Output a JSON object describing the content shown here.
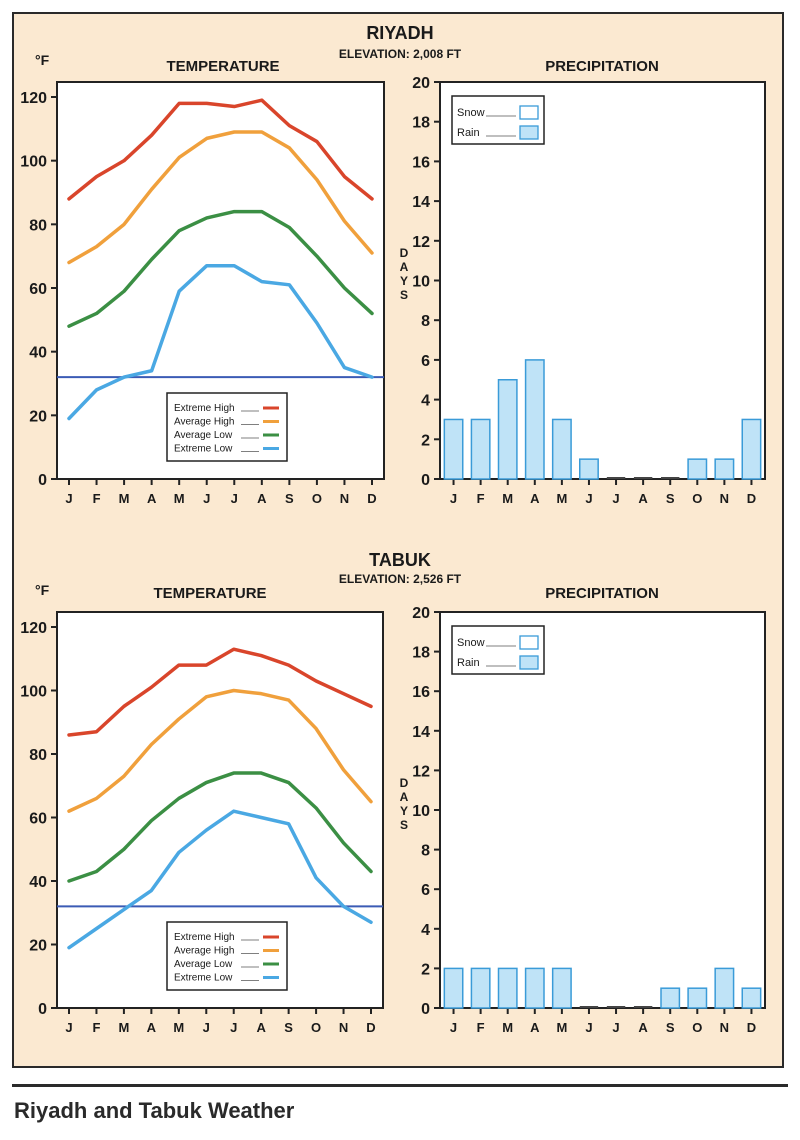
{
  "page_title": "Riyadh and Tabuk Weather",
  "colors": {
    "extreme_high": "#d9452b",
    "average_high": "#f0a03c",
    "average_low": "#3b8f44",
    "extreme_low": "#4aa8e3",
    "freezing_line": "#3b5bb5",
    "rain_fill": "#bfe3f7",
    "bar_stroke": "#3a9bd8"
  },
  "legend_temp": [
    "Extreme High",
    "Average High",
    "Average Low",
    "Extreme Low"
  ],
  "legend_precip": [
    "Snow",
    "Rain"
  ],
  "chart_data": [
    {
      "type": "line",
      "city": "RIYADH",
      "title": "TEMPERATURE",
      "ylabel": "°F",
      "categories": [
        "J",
        "F",
        "M",
        "A",
        "M",
        "J",
        "J",
        "A",
        "S",
        "O",
        "N",
        "D"
      ],
      "ylim": [
        0,
        120
      ],
      "yticks": [
        0,
        20,
        40,
        60,
        80,
        100,
        120
      ],
      "reference_line": 32,
      "grid": false,
      "legend": "bottom-center",
      "series": [
        {
          "name": "Extreme High",
          "values": [
            88,
            95,
            100,
            108,
            118,
            118,
            117,
            119,
            111,
            106,
            95,
            88
          ]
        },
        {
          "name": "Average High",
          "values": [
            68,
            73,
            80,
            91,
            101,
            107,
            109,
            109,
            104,
            94,
            81,
            71
          ]
        },
        {
          "name": "Average Low",
          "values": [
            48,
            52,
            59,
            69,
            78,
            82,
            84,
            84,
            79,
            70,
            60,
            52
          ]
        },
        {
          "name": "Extreme Low",
          "values": [
            19,
            28,
            32,
            34,
            59,
            67,
            67,
            62,
            61,
            49,
            35,
            32
          ]
        }
      ]
    },
    {
      "type": "bar",
      "city": "RIYADH",
      "title": "PRECIPITATION",
      "ylabel": "DAYS",
      "categories": [
        "J",
        "F",
        "M",
        "A",
        "M",
        "J",
        "J",
        "A",
        "S",
        "O",
        "N",
        "D"
      ],
      "ylim": [
        0,
        20
      ],
      "yticks": [
        0,
        2,
        4,
        6,
        8,
        10,
        12,
        14,
        16,
        18,
        20
      ],
      "legend": "top-left",
      "series": [
        {
          "name": "Rain",
          "values": [
            3,
            3,
            5,
            6,
            3,
            1,
            0,
            0,
            0,
            1,
            1,
            3
          ]
        },
        {
          "name": "Snow",
          "values": [
            0,
            0,
            0,
            0,
            0,
            0,
            0,
            0,
            0,
            0,
            0,
            0
          ]
        }
      ]
    },
    {
      "type": "line",
      "city": "TABUK",
      "title": "TEMPERATURE",
      "ylabel": "°F",
      "categories": [
        "J",
        "F",
        "M",
        "A",
        "M",
        "J",
        "J",
        "A",
        "S",
        "O",
        "N",
        "D"
      ],
      "ylim": [
        0,
        120
      ],
      "yticks": [
        0,
        20,
        40,
        60,
        80,
        100,
        120
      ],
      "reference_line": 32,
      "grid": false,
      "legend": "bottom-center",
      "series": [
        {
          "name": "Extreme High",
          "values": [
            86,
            87,
            95,
            101,
            108,
            108,
            113,
            111,
            108,
            103,
            99,
            95
          ]
        },
        {
          "name": "Average High",
          "values": [
            62,
            66,
            73,
            83,
            91,
            98,
            100,
            99,
            97,
            88,
            75,
            65
          ]
        },
        {
          "name": "Average Low",
          "values": [
            40,
            43,
            50,
            59,
            66,
            71,
            74,
            74,
            71,
            63,
            52,
            43
          ]
        },
        {
          "name": "Extreme Low",
          "values": [
            19,
            25,
            31,
            37,
            49,
            56,
            62,
            60,
            58,
            41,
            32,
            27
          ]
        }
      ]
    },
    {
      "type": "bar",
      "city": "TABUK",
      "title": "PRECIPITATION",
      "ylabel": "DAYS",
      "categories": [
        "J",
        "F",
        "M",
        "A",
        "M",
        "J",
        "J",
        "A",
        "S",
        "O",
        "N",
        "D"
      ],
      "ylim": [
        0,
        20
      ],
      "yticks": [
        0,
        2,
        4,
        6,
        8,
        10,
        12,
        14,
        16,
        18,
        20
      ],
      "legend": "top-left",
      "series": [
        {
          "name": "Rain",
          "values": [
            2,
            2,
            2,
            2,
            2,
            0,
            0,
            0,
            1,
            1,
            2,
            1
          ]
        },
        {
          "name": "Snow",
          "values": [
            0,
            0,
            0,
            0,
            0,
            0,
            0,
            0,
            0,
            0,
            0,
            0
          ]
        }
      ]
    }
  ],
  "sections": [
    {
      "city": "RIYADH",
      "elevation": "ELEVATION: 2,008 FT"
    },
    {
      "city": "TABUK",
      "elevation": "ELEVATION: 2,526 FT"
    }
  ]
}
